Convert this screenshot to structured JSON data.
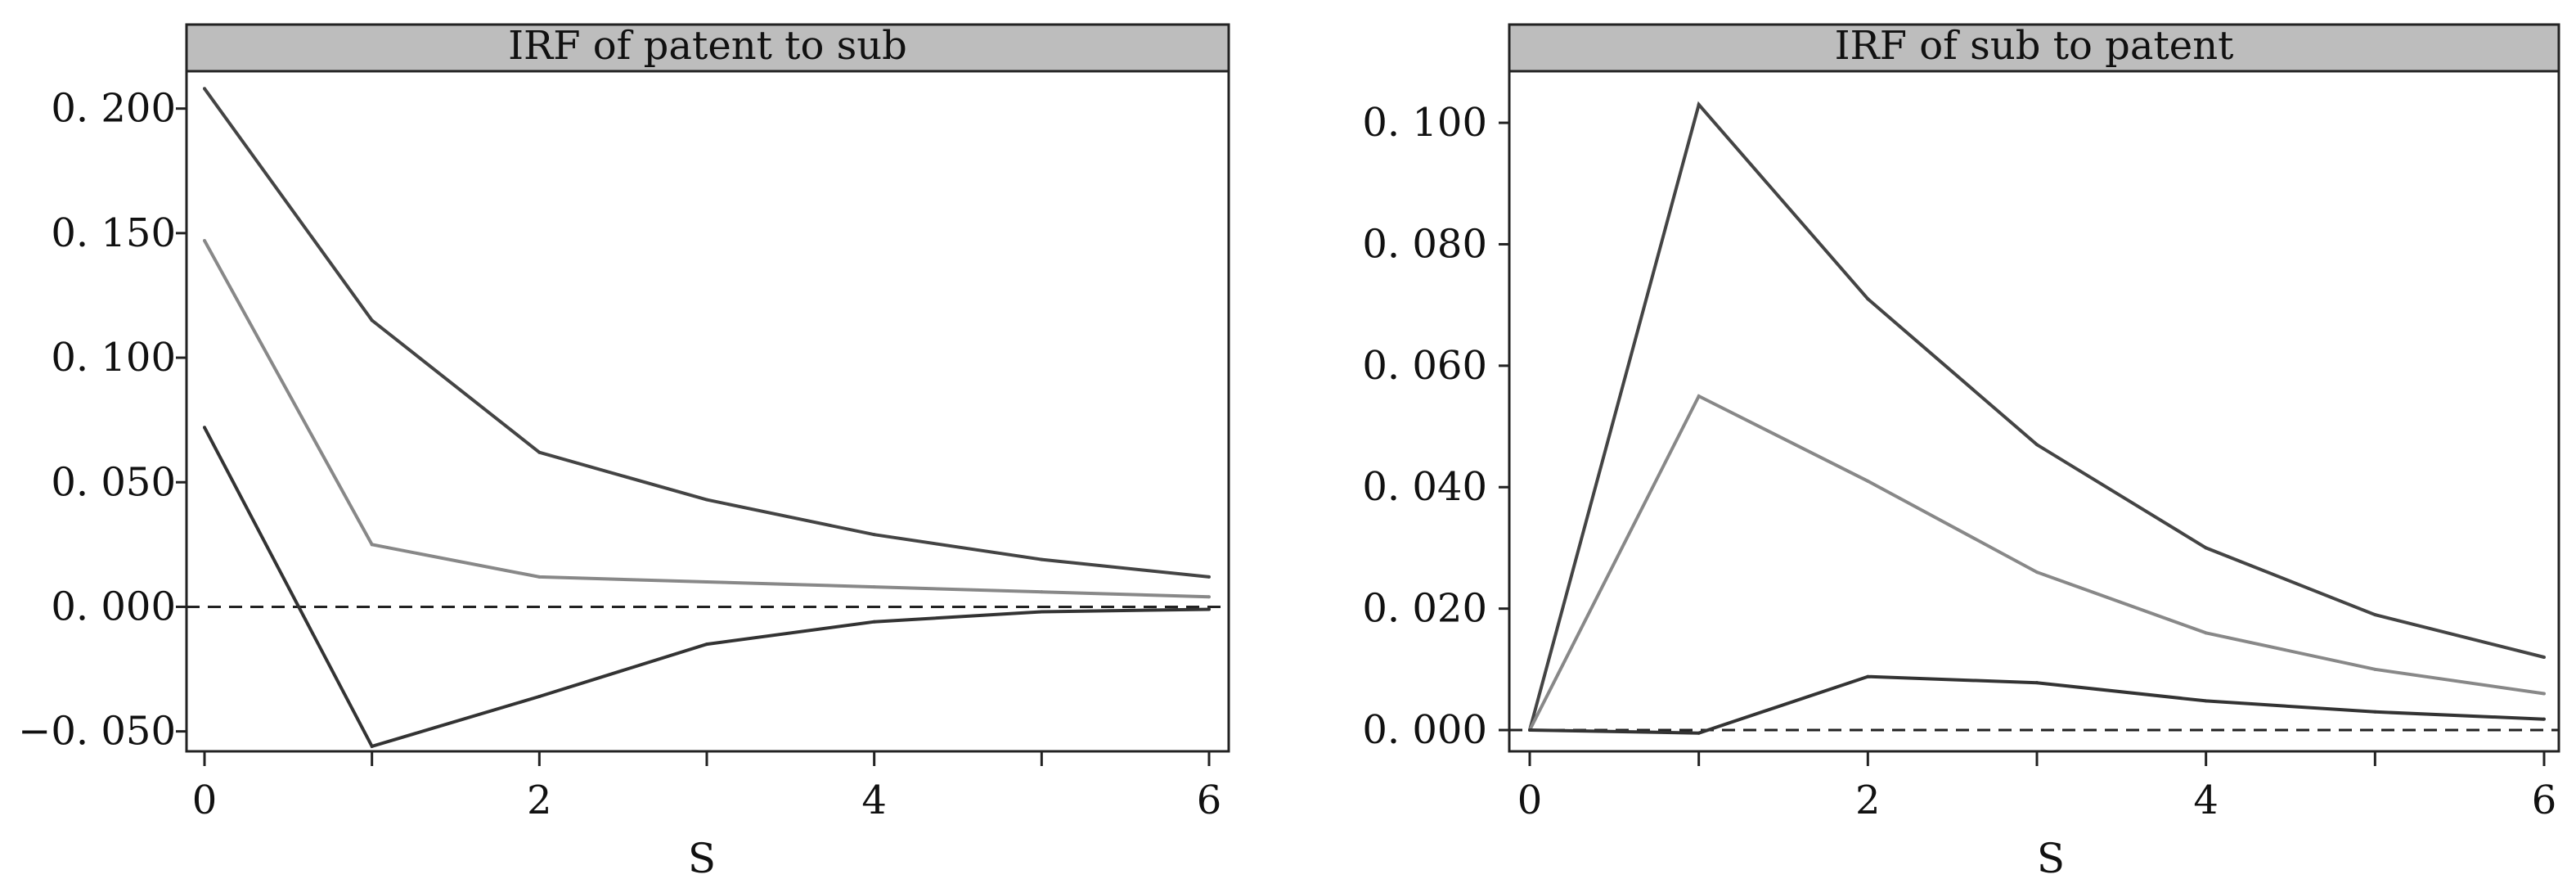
{
  "chart_data": [
    {
      "type": "line",
      "title": "IRF  of patent  to  sub",
      "xlabel": "S",
      "ylabel": "",
      "x": [
        0,
        1,
        2,
        3,
        4,
        5,
        6
      ],
      "xlim": [
        0,
        6
      ],
      "ylim": [
        -0.058,
        0.215
      ],
      "xticks": [
        0,
        2,
        4,
        6
      ],
      "xtick_labels": [
        "0",
        "2",
        "4",
        "6"
      ],
      "yticks": [
        -0.05,
        0.0,
        0.05,
        0.1,
        0.15,
        0.2
      ],
      "ytick_labels": [
        "−0. 050",
        "0. 000",
        "0. 050",
        "0. 100",
        "0. 150",
        "0. 200"
      ],
      "zero_line": "dashed",
      "grid": false,
      "series": [
        {
          "values": [
            0.208,
            0.115,
            0.062,
            0.043,
            0.029,
            0.019,
            0.012
          ],
          "color": "#444444"
        },
        {
          "values": [
            0.147,
            0.025,
            0.012,
            0.01,
            0.008,
            0.006,
            0.004
          ],
          "color": "#888888"
        },
        {
          "values": [
            0.072,
            -0.056,
            -0.036,
            -0.015,
            -0.006,
            -0.002,
            -0.001
          ],
          "color": "#333333"
        }
      ]
    },
    {
      "type": "line",
      "title": "IRF   of  sub  to   patent",
      "xlabel": "S",
      "ylabel": "",
      "x": [
        0,
        1,
        2,
        3,
        4,
        5,
        6
      ],
      "xlim": [
        0,
        6
      ],
      "ylim": [
        -0.0035,
        0.1085
      ],
      "xticks": [
        0,
        2,
        4,
        6
      ],
      "xtick_labels": [
        "0",
        "2",
        "4",
        "6"
      ],
      "yticks": [
        0.0,
        0.02,
        0.04,
        0.06,
        0.08,
        0.1
      ],
      "ytick_labels": [
        "0. 000",
        "0. 020",
        "0. 040",
        "0. 060",
        "0. 080",
        "0. 100"
      ],
      "zero_line": "dashed",
      "grid": false,
      "series": [
        {
          "values": [
            0.0,
            0.103,
            0.071,
            0.047,
            0.03,
            0.019,
            0.012
          ],
          "color": "#444444"
        },
        {
          "values": [
            0.0,
            0.055,
            0.041,
            0.026,
            0.016,
            0.01,
            0.006
          ],
          "color": "#888888"
        },
        {
          "values": [
            0.0,
            -0.0005,
            0.0088,
            0.0078,
            0.0048,
            0.003,
            0.0018
          ],
          "color": "#333333"
        }
      ]
    }
  ]
}
